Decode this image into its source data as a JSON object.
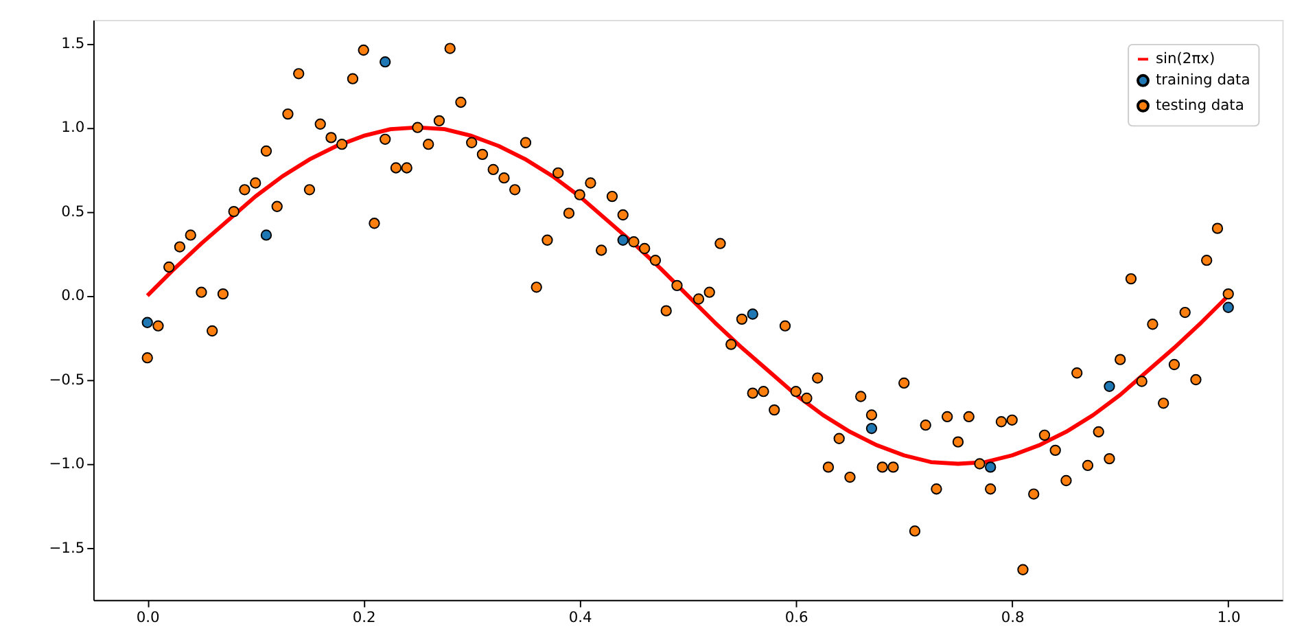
{
  "chart_data": {
    "type": "scatter",
    "xlim": [
      -0.05,
      1.05
    ],
    "ylim": [
      -1.81,
      1.64
    ],
    "xticks": [
      {
        "value": 0,
        "label": "0.0"
      },
      0.2,
      0.4,
      0.6,
      0.8,
      {
        "value": 1,
        "label": "1.0"
      }
    ],
    "yticks": [
      -1.5,
      {
        "value": -1,
        "label": "−1.0"
      },
      -0.5,
      {
        "value": 0,
        "label": "0.0"
      },
      0.5,
      {
        "value": 1,
        "label": "1.0"
      },
      1.5
    ],
    "grid": false,
    "legend": "top right",
    "marker": "circle",
    "series": [
      {
        "name": "sin(2πx)",
        "type": "line",
        "color": "#ff0000",
        "line_style": "solid",
        "marker": "none",
        "x": [
          0,
          0.025,
          0.05,
          0.075,
          0.1,
          0.125,
          0.15,
          0.175,
          0.2,
          0.225,
          0.25,
          0.275,
          0.3,
          0.325,
          0.35,
          0.375,
          0.4,
          0.425,
          0.45,
          0.475,
          0.5,
          0.525,
          0.55,
          0.575,
          0.6,
          0.625,
          0.65,
          0.675,
          0.7,
          0.725,
          0.75,
          0.775,
          0.8,
          0.825,
          0.85,
          0.875,
          0.9,
          0.925,
          0.95,
          0.975,
          1.0
        ],
        "values": [
          0,
          0.16,
          0.31,
          0.45,
          0.59,
          0.71,
          0.81,
          0.89,
          0.95,
          0.99,
          1.0,
          0.99,
          0.95,
          0.89,
          0.81,
          0.71,
          0.59,
          0.45,
          0.31,
          0.16,
          0,
          -0.16,
          -0.31,
          -0.45,
          -0.59,
          -0.71,
          -0.81,
          -0.89,
          -0.95,
          -0.99,
          -1.0,
          -0.99,
          -0.95,
          -0.89,
          -0.81,
          -0.71,
          -0.59,
          -0.45,
          -0.31,
          -0.16,
          0
        ]
      },
      {
        "name": "training data",
        "color": "#1f77b4",
        "x": [
          0,
          0.11,
          0.22,
          0.33,
          0.44,
          0.56,
          0.67,
          0.78,
          0.89,
          1.0
        ],
        "values": [
          -0.16,
          0.36,
          1.39,
          null,
          0.33,
          -0.11,
          -0.79,
          -1.02,
          -0.54,
          -0.07
        ]
      },
      {
        "name": "testing data",
        "color": "#ff7f0e",
        "x": [
          0,
          0.01,
          0.02,
          0.03,
          0.04,
          0.05,
          0.06,
          0.07,
          0.08,
          0.09,
          0.1,
          0.11,
          0.12,
          0.13,
          0.14,
          0.15,
          0.16,
          0.17,
          0.18,
          0.19,
          0.2,
          0.21,
          0.22,
          0.23,
          0.24,
          0.25,
          0.26,
          0.27,
          0.28,
          0.29,
          0.3,
          0.31,
          0.32,
          0.33,
          0.34,
          0.35,
          0.36,
          0.37,
          0.38,
          0.39,
          0.4,
          0.41,
          0.42,
          0.43,
          0.44,
          0.45,
          0.46,
          0.47,
          0.48,
          0.49,
          0.51,
          0.52,
          0.53,
          0.54,
          0.55,
          0.56,
          0.57,
          0.58,
          0.59,
          0.6,
          0.61,
          0.62,
          0.63,
          0.64,
          0.65,
          0.66,
          0.67,
          0.68,
          0.69,
          0.7,
          0.71,
          0.72,
          0.73,
          0.74,
          0.75,
          0.76,
          0.77,
          0.78,
          0.79,
          0.8,
          0.81,
          0.82,
          0.83,
          0.84,
          0.85,
          0.86,
          0.87,
          0.88,
          0.89,
          0.9,
          0.91,
          0.92,
          0.93,
          0.94,
          0.95,
          0.96,
          0.97,
          0.98,
          0.99,
          1.0
        ],
        "values": [
          -0.37,
          -0.18,
          0.17,
          0.29,
          0.36,
          0.02,
          -0.21,
          0.01,
          0.5,
          0.63,
          0.67,
          0.86,
          0.53,
          1.08,
          1.32,
          0.63,
          1.02,
          0.94,
          0.9,
          1.29,
          1.46,
          0.43,
          0.93,
          0.76,
          0.76,
          1.0,
          0.9,
          1.04,
          1.47,
          1.15,
          0.91,
          0.84,
          0.75,
          0.7,
          0.63,
          0.91,
          0.05,
          0.33,
          0.73,
          0.49,
          0.6,
          0.67,
          0.27,
          0.59,
          0.48,
          0.32,
          0.28,
          0.21,
          -0.09,
          0.06,
          -0.02,
          0.02,
          0.31,
          -0.29,
          -0.14,
          -0.58,
          -0.57,
          -0.68,
          -0.18,
          -0.57,
          -0.61,
          -0.49,
          -1.02,
          -0.85,
          -1.08,
          -0.6,
          -0.71,
          -1.02,
          -1.02,
          -0.52,
          -1.4,
          -0.77,
          -1.15,
          -0.72,
          -0.87,
          -0.72,
          -1.0,
          -1.15,
          -0.75,
          -0.74,
          -1.63,
          -1.18,
          -0.83,
          -0.92,
          -1.1,
          -0.46,
          -1.01,
          -0.81,
          -0.97,
          -0.38,
          0.1,
          -0.51,
          -0.17,
          -0.64,
          -0.41,
          -0.1,
          -0.5,
          0.21,
          0.4,
          0.01
        ]
      }
    ]
  }
}
